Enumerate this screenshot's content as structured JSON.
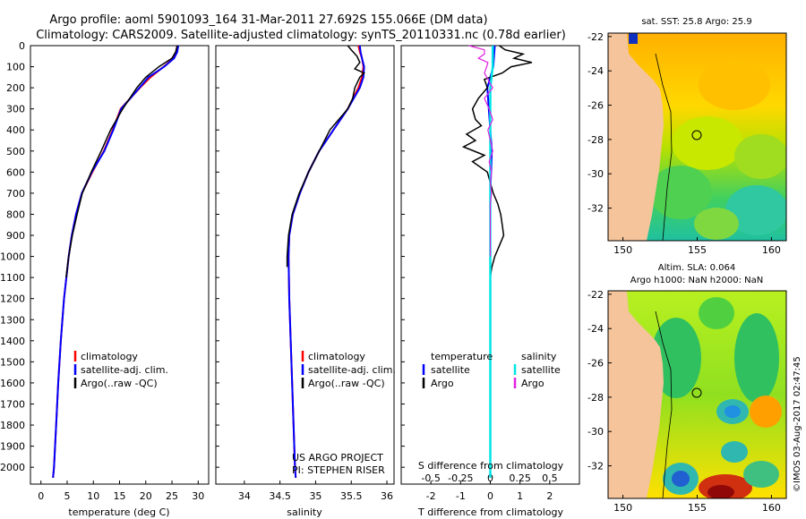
{
  "title": {
    "line1": "Argo profile: aoml 5901093_164 31-Mar-2011 27.692S 155.066E (DM data)",
    "line2": "Climatology: CARS2009. Satellite-adjusted climatology: synTS_20110331.nc (0.78d earlier)"
  },
  "colors": {
    "climatology": "#ff0000",
    "satellite_clim": "#0000ff",
    "argo": "#000000",
    "salinity_satellite": "#00e5e5",
    "salinity_argo": "#e020e0"
  },
  "depth_axis": {
    "ticks": [
      "0",
      "100",
      "200",
      "300",
      "400",
      "500",
      "600",
      "700",
      "800",
      "900",
      "1000",
      "1100",
      "1200",
      "1300",
      "1400",
      "1500",
      "1600",
      "1700",
      "1800",
      "1900",
      "2000"
    ],
    "range": [
      0,
      2080
    ]
  },
  "chart_data": [
    {
      "type": "line",
      "id": "temperature",
      "xlabel": "temperature (deg C)",
      "xlim": [
        -2,
        32
      ],
      "xticks": [
        "0",
        "5",
        "10",
        "15",
        "20",
        "25",
        "30"
      ],
      "xtick_values": [
        0,
        5,
        10,
        15,
        20,
        25,
        30
      ],
      "legend": [
        "climatology",
        "satellite-adj. clim.",
        "Argo(..raw -QC)"
      ],
      "series": [
        {
          "name": "climatology",
          "depth": [
            0,
            30,
            60,
            100,
            150,
            200,
            300,
            400,
            500,
            600,
            700,
            800,
            900,
            1000,
            1200,
            1400,
            1600,
            1800,
            2000,
            2050
          ],
          "values": [
            26,
            25.8,
            25.3,
            23.4,
            20.9,
            18.9,
            15.2,
            13.7,
            12.0,
            9.8,
            7.8,
            6.7,
            5.9,
            5.3,
            4.4,
            3.8,
            3.3,
            2.9,
            2.5,
            2.3
          ]
        },
        {
          "name": "satellite-adj. clim.",
          "depth": [
            0,
            30,
            60,
            100,
            150,
            200,
            300,
            400,
            500,
            600,
            700,
            800,
            900,
            1000,
            1200,
            1400,
            1600,
            1800,
            2000,
            2050
          ],
          "values": [
            26.2,
            26,
            25.4,
            23.5,
            20.5,
            18.8,
            15.3,
            13.8,
            12.1,
            9.7,
            7.8,
            6.7,
            5.9,
            5.3,
            4.4,
            3.8,
            3.3,
            2.9,
            2.5,
            2.3
          ]
        },
        {
          "name": "Argo(..raw -QC)",
          "depth": [
            0,
            30,
            60,
            100,
            150,
            200,
            300,
            400,
            500,
            600,
            700,
            800,
            900,
            1000,
            1100
          ],
          "values": [
            26,
            25.7,
            25.0,
            22.5,
            20.0,
            18.3,
            15.6,
            13.3,
            11.5,
            9.6,
            7.9,
            6.9,
            6.0,
            5.3,
            4.8
          ]
        }
      ]
    },
    {
      "type": "line",
      "id": "salinity",
      "xlabel": "salinity",
      "xlim": [
        33.6,
        36.1
      ],
      "xticks": [
        "34",
        "34.5",
        "35",
        "35.5",
        "36"
      ],
      "xtick_values": [
        34,
        34.5,
        35,
        35.5,
        36
      ],
      "legend": [
        "climatology",
        "satellite-adj. clim.",
        "Argo(..raw -QC)"
      ],
      "annotation": [
        "US ARGO PROJECT",
        "PI: STEPHEN RISER"
      ],
      "series": [
        {
          "name": "climatology",
          "depth": [
            0,
            30,
            60,
            100,
            150,
            200,
            300,
            400,
            500,
            600,
            700,
            800,
            900,
            1000,
            1200,
            1400,
            1600,
            1800,
            2000,
            2050
          ],
          "values": [
            35.6,
            35.62,
            35.65,
            35.67,
            35.65,
            35.6,
            35.45,
            35.25,
            35.05,
            34.9,
            34.78,
            34.68,
            34.63,
            34.62,
            34.63,
            34.65,
            34.67,
            34.69,
            34.71,
            34.72
          ]
        },
        {
          "name": "satellite-adj. clim.",
          "depth": [
            0,
            30,
            60,
            100,
            150,
            200,
            300,
            400,
            500,
            600,
            700,
            800,
            900,
            1000,
            1200,
            1400,
            1600,
            1800,
            2000,
            2050
          ],
          "values": [
            35.62,
            35.63,
            35.65,
            35.68,
            35.67,
            35.62,
            35.45,
            35.25,
            35.05,
            34.9,
            34.78,
            34.68,
            34.63,
            34.62,
            34.63,
            34.65,
            34.67,
            34.69,
            34.71,
            34.72
          ]
        },
        {
          "name": "Argo(..raw -QC)",
          "depth": [
            0,
            20,
            50,
            80,
            110,
            130,
            150,
            200,
            250,
            300,
            400,
            500,
            600,
            700,
            800,
            900,
            1000,
            1050
          ],
          "values": [
            35.45,
            35.5,
            35.58,
            35.62,
            35.55,
            35.68,
            35.62,
            35.55,
            35.52,
            35.45,
            35.2,
            35.05,
            34.9,
            34.77,
            34.67,
            34.62,
            34.6,
            34.6
          ]
        }
      ]
    },
    {
      "type": "line",
      "id": "difference",
      "xlabel": "T difference from climatology",
      "xticks": [
        "-2",
        "-1",
        "0",
        "1",
        "2"
      ],
      "xtick_values": [
        -2,
        -1,
        0,
        1,
        2
      ],
      "xlim": [
        -3,
        3
      ],
      "top_xlabel": "S difference from climatology",
      "top_xticks": [
        "-0.5",
        "-0.25",
        "0",
        "0.25",
        "0.5"
      ],
      "top_xtick_values": [
        -0.5,
        -0.25,
        0,
        0.25,
        0.5
      ],
      "legend_temperature_title": "temperature",
      "legend_salinity_title": "salinity",
      "legend_temperature": [
        "satellite",
        "Argo"
      ],
      "legend_salinity": [
        "satellite",
        "Argo"
      ],
      "series": [
        {
          "name": "temperature satellite",
          "unit": "T",
          "depth": [
            0,
            100,
            200,
            300,
            500,
            700,
            900,
            1100,
            1500,
            2050
          ],
          "values": [
            0.15,
            0.1,
            -0.1,
            -0.05,
            0.05,
            0.0,
            0.0,
            0.0,
            0.0,
            0.0
          ]
        },
        {
          "name": "temperature Argo",
          "unit": "T",
          "depth": [
            0,
            20,
            40,
            60,
            80,
            100,
            130,
            160,
            200,
            250,
            300,
            350,
            380,
            420,
            450,
            480,
            520,
            550,
            600,
            650,
            700,
            750,
            800,
            850,
            900,
            950,
            1000,
            1050,
            1100
          ],
          "values": [
            0.3,
            0.5,
            1.1,
            0.8,
            1.4,
            0.7,
            0.4,
            -0.2,
            -0.1,
            -0.4,
            -0.6,
            -0.5,
            -0.3,
            -0.8,
            -0.5,
            -0.9,
            -0.2,
            -0.6,
            -0.1,
            0.0,
            0.1,
            0.25,
            0.35,
            0.4,
            0.45,
            0.3,
            0.15,
            0.05,
            0.0
          ]
        },
        {
          "name": "salinity satellite",
          "unit": "S",
          "depth": [
            0,
            100,
            200,
            400,
            600,
            800,
            1000,
            1500,
            2050
          ],
          "values": [
            0.02,
            0.02,
            0.0,
            0.0,
            0.0,
            0.0,
            0.0,
            0.0,
            0.0
          ]
        },
        {
          "name": "salinity Argo",
          "unit": "S",
          "depth": [
            0,
            20,
            40,
            60,
            80,
            100,
            130,
            160,
            200,
            250,
            300,
            350,
            400,
            450,
            500,
            550,
            600,
            650,
            700,
            750,
            800,
            900,
            1000
          ],
          "values": [
            -0.18,
            -0.05,
            -0.05,
            -0.1,
            -0.02,
            -0.03,
            -0.05,
            -0.02,
            0.02,
            -0.05,
            -0.01,
            0.02,
            -0.02,
            0.0,
            0.02,
            -0.01,
            0.01,
            0.0,
            0.01,
            0.0,
            0.0,
            0.0,
            0.0
          ]
        }
      ]
    },
    {
      "type": "heatmap",
      "id": "sst_map",
      "title": "sat. SST: 25.8  Argo: 25.9",
      "xticks": [
        "150",
        "155",
        "160"
      ],
      "xtick_values": [
        150,
        155,
        160
      ],
      "xlim": [
        149,
        161
      ],
      "yticks": [
        "-22",
        "-24",
        "-26",
        "-28",
        "-30",
        "-32"
      ],
      "ytick_values": [
        -22,
        -24,
        -26,
        -28,
        -30,
        -32
      ],
      "ylim": [
        -33.9,
        -21.8
      ],
      "marker": {
        "lon": 155.066,
        "lat": -27.692
      }
    },
    {
      "type": "heatmap",
      "id": "sla_map",
      "title_line1": "Altim. SLA: 0.064",
      "title_line2": "Argo h1000: NaN h2000: NaN",
      "xticks": [
        "150",
        "155",
        "160"
      ],
      "xtick_values": [
        150,
        155,
        160
      ],
      "xlim": [
        149,
        161
      ],
      "yticks": [
        "-22",
        "-24",
        "-26",
        "-28",
        "-30",
        "-32"
      ],
      "ytick_values": [
        -22,
        -24,
        -26,
        -28,
        -30,
        -32
      ],
      "ylim": [
        -33.9,
        -21.8
      ],
      "marker": {
        "lon": 155.066,
        "lat": -27.692
      }
    }
  ],
  "credit": "©IMOS 03-Aug-2017 02:47:45"
}
